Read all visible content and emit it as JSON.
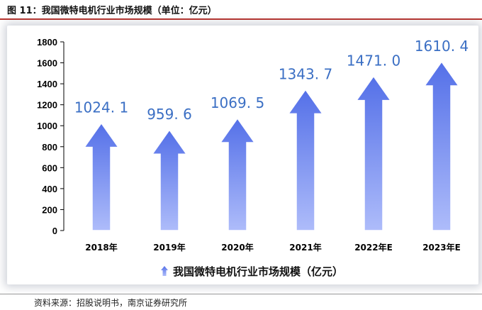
{
  "header": {
    "title": "图 11：我国微特电机行业市场规模（单位：亿元）"
  },
  "footer": {
    "source": "资料来源：招股说明书，南京证券研究所"
  },
  "colors": {
    "arrow_top": "#5470e8",
    "arrow_bottom": "#aebcfa",
    "label": "#3b6fc4",
    "axis": "#000000"
  },
  "chart_data": {
    "type": "bar",
    "title": "",
    "xlabel": "",
    "ylabel": "",
    "categories": [
      "2018年",
      "2019年",
      "2020年",
      "2021年",
      "2022年E",
      "2023年E"
    ],
    "series": [
      {
        "name": "我国微特电机行业市场规模（亿元）",
        "values": [
          1024.1,
          959.6,
          1069.5,
          1343.7,
          1471.0,
          1610.4
        ]
      }
    ],
    "data_labels": [
      "1024. 1",
      "959. 6",
      "1069. 5",
      "1343. 7",
      "1471. 0",
      "1610. 4"
    ],
    "ylim": [
      0,
      1800
    ],
    "yticks": [
      0,
      200,
      400,
      600,
      800,
      1000,
      1200,
      1400,
      1600,
      1800
    ],
    "grid": false,
    "legend": "bottom",
    "mark_shape": "arrow"
  }
}
